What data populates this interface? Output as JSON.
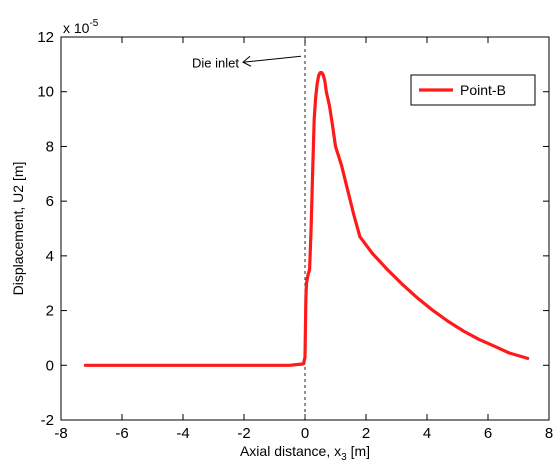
{
  "chart_data": {
    "type": "line",
    "xlabel": "Axial distance, x",
    "xlabel_sub": "3",
    "xlabel_unit": " [m]",
    "ylabel": "Displacement, U2 [m]",
    "y_multiplier": "x 10",
    "y_multiplier_exp": "-5",
    "xlim": [
      -8,
      8
    ],
    "ylim": [
      -2,
      12
    ],
    "xticks": [
      -8,
      -6,
      -4,
      -2,
      0,
      2,
      4,
      6,
      8
    ],
    "yticks": [
      -2,
      0,
      2,
      4,
      6,
      8,
      10,
      12
    ],
    "grid": false,
    "legend_position": "top-right",
    "vline": {
      "x": 0,
      "style": "dashed"
    },
    "annotation": {
      "text": "Die inlet",
      "x": 0,
      "y": 11.15
    },
    "series": [
      {
        "name": "Point-B",
        "color": "#ff1a1a",
        "x": [
          -7.2,
          -3.0,
          -0.5,
          -0.05,
          0.0,
          0.03,
          0.05,
          0.1,
          0.15,
          0.2,
          0.25,
          0.3,
          0.35,
          0.4,
          0.45,
          0.5,
          0.55,
          0.6,
          0.65,
          0.7,
          0.8,
          0.9,
          1.0,
          1.2,
          1.4,
          1.6,
          1.8,
          2.2,
          2.7,
          3.2,
          3.7,
          4.2,
          4.7,
          5.2,
          5.7,
          6.2,
          6.7,
          7.3
        ],
        "y": [
          0,
          0,
          0,
          0.05,
          0.3,
          2.5,
          3.0,
          3.3,
          3.5,
          5.0,
          7.0,
          9.0,
          9.8,
          10.3,
          10.6,
          10.7,
          10.7,
          10.6,
          10.4,
          10.0,
          9.5,
          8.8,
          8.0,
          7.3,
          6.4,
          5.5,
          4.7,
          4.1,
          3.5,
          2.95,
          2.45,
          2.0,
          1.6,
          1.25,
          0.95,
          0.7,
          0.45,
          0.25
        ]
      }
    ]
  }
}
